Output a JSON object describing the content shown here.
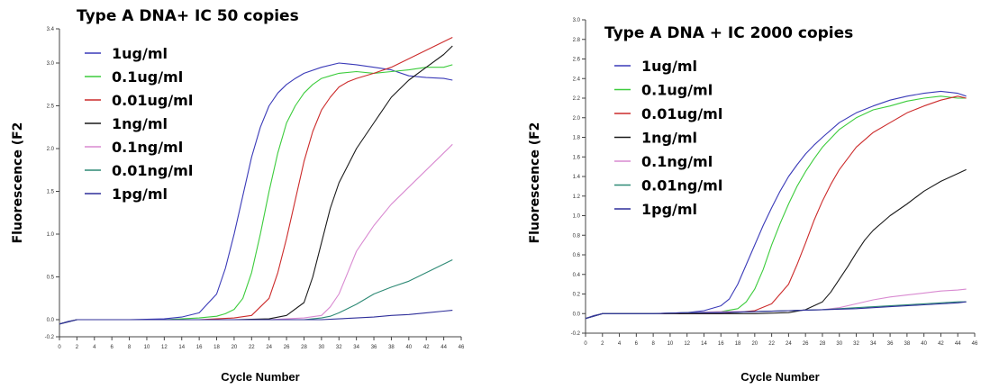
{
  "chart_data": [
    {
      "type": "line",
      "title": "Type A DNA+ IC 50 copies",
      "xlabel": "Cycle Number",
      "ylabel": "Fluorescence (F2",
      "xlim": [
        0,
        46
      ],
      "ylim": [
        -0.2,
        3.4
      ],
      "x_ticks": [
        "0",
        "2",
        "4",
        "6",
        "8",
        "10",
        "12",
        "14",
        "16",
        "18",
        "20",
        "22",
        "24",
        "26",
        "28",
        "30",
        "32",
        "34",
        "36",
        "38",
        "40",
        "42",
        "44",
        "46"
      ],
      "y_ticks": [
        "-0.2",
        "0.0",
        "0.5",
        "1.0",
        "1.5",
        "2.0",
        "2.5",
        "3.0",
        "3.4"
      ],
      "legend_position": "top-left",
      "series": [
        {
          "name": "1ug/ml",
          "color": "#3a3ab8",
          "x": [
            0,
            1,
            2,
            4,
            8,
            12,
            14,
            16,
            18,
            19,
            20,
            21,
            22,
            23,
            24,
            25,
            26,
            27,
            28,
            30,
            32,
            34,
            36,
            38,
            40,
            42,
            44,
            45
          ],
          "y": [
            -0.05,
            -0.02,
            0,
            0,
            0,
            0.01,
            0.03,
            0.08,
            0.3,
            0.6,
            1,
            1.45,
            1.9,
            2.25,
            2.5,
            2.65,
            2.75,
            2.82,
            2.88,
            2.95,
            3,
            2.98,
            2.95,
            2.92,
            2.85,
            2.83,
            2.82,
            2.8
          ]
        },
        {
          "name": "0.1ug/ml",
          "color": "#3ccc3c",
          "x": [
            0,
            2,
            4,
            8,
            12,
            16,
            18,
            19,
            20,
            21,
            22,
            23,
            24,
            25,
            26,
            27,
            28,
            29,
            30,
            31,
            32,
            34,
            36,
            38,
            40,
            42,
            44,
            45
          ],
          "y": [
            -0.05,
            0,
            0,
            0,
            0,
            0.02,
            0.04,
            0.07,
            0.12,
            0.25,
            0.55,
            1,
            1.5,
            1.95,
            2.3,
            2.5,
            2.65,
            2.75,
            2.82,
            2.85,
            2.88,
            2.9,
            2.88,
            2.9,
            2.92,
            2.95,
            2.95,
            2.98
          ]
        },
        {
          "name": "0.01ug/ml",
          "color": "#cc2b2b",
          "x": [
            0,
            2,
            4,
            8,
            12,
            16,
            20,
            22,
            24,
            25,
            26,
            27,
            28,
            29,
            30,
            31,
            32,
            33,
            34,
            36,
            38,
            40,
            42,
            44,
            45
          ],
          "y": [
            -0.05,
            0,
            0,
            0,
            0,
            0,
            0.02,
            0.05,
            0.25,
            0.55,
            0.95,
            1.4,
            1.85,
            2.2,
            2.45,
            2.6,
            2.72,
            2.78,
            2.82,
            2.88,
            2.95,
            3.05,
            3.15,
            3.25,
            3.3
          ]
        },
        {
          "name": "1ng/ml",
          "color": "#1a1a1a",
          "x": [
            0,
            2,
            4,
            8,
            12,
            16,
            20,
            24,
            26,
            28,
            29,
            30,
            31,
            32,
            34,
            36,
            38,
            40,
            42,
            44,
            45
          ],
          "y": [
            -0.05,
            0,
            0,
            0,
            0,
            0,
            0,
            0.01,
            0.05,
            0.2,
            0.5,
            0.9,
            1.3,
            1.6,
            2,
            2.3,
            2.6,
            2.8,
            2.95,
            3.1,
            3.2
          ]
        },
        {
          "name": "0.1ng/ml",
          "color": "#d98ad1",
          "x": [
            0,
            2,
            4,
            8,
            12,
            16,
            20,
            24,
            28,
            30,
            31,
            32,
            33,
            34,
            35,
            36,
            38,
            40,
            42,
            44,
            45
          ],
          "y": [
            -0.05,
            0,
            0,
            0,
            0,
            0,
            0,
            0,
            0.02,
            0.05,
            0.15,
            0.3,
            0.55,
            0.8,
            0.95,
            1.1,
            1.35,
            1.55,
            1.75,
            1.95,
            2.05
          ]
        },
        {
          "name": "0.01ng/ml",
          "color": "#2e8a75",
          "x": [
            0,
            2,
            4,
            8,
            12,
            16,
            20,
            24,
            28,
            30,
            31,
            32,
            34,
            36,
            38,
            40,
            42,
            44,
            45
          ],
          "y": [
            -0.05,
            0,
            0,
            0,
            0,
            0,
            0,
            0,
            0,
            0.02,
            0.04,
            0.08,
            0.18,
            0.3,
            0.38,
            0.45,
            0.55,
            0.65,
            0.7
          ]
        },
        {
          "name": "1pg/ml",
          "color": "#2f2f9a",
          "x": [
            0,
            2,
            4,
            8,
            12,
            16,
            20,
            24,
            28,
            30,
            32,
            34,
            36,
            38,
            40,
            42,
            44,
            45
          ],
          "y": [
            -0.05,
            0,
            0,
            0,
            0,
            0,
            0,
            0,
            0,
            0,
            0.01,
            0.02,
            0.03,
            0.05,
            0.06,
            0.08,
            0.1,
            0.11
          ]
        }
      ]
    },
    {
      "type": "line",
      "title": "Type A DNA + IC 2000 copies",
      "xlabel": "Cycle Number",
      "ylabel": "Fluorescence (F2",
      "xlim": [
        0,
        46
      ],
      "ylim": [
        -0.2,
        3.0
      ],
      "x_ticks": [
        "0",
        "2",
        "4",
        "6",
        "8",
        "10",
        "12",
        "14",
        "16",
        "18",
        "20",
        "22",
        "24",
        "26",
        "28",
        "30",
        "32",
        "34",
        "36",
        "38",
        "40",
        "42",
        "44",
        "46"
      ],
      "y_ticks": [
        "-0.2",
        "0.0",
        "0.2",
        "0.4",
        "0.6",
        "0.8",
        "1.0",
        "1.2",
        "1.4",
        "1.6",
        "1.8",
        "2.0",
        "2.2",
        "2.4",
        "2.6",
        "2.8",
        "3.0"
      ],
      "legend_position": "top-left",
      "series": [
        {
          "name": "1ug/ml",
          "color": "#3a3ab8",
          "x": [
            0,
            1,
            2,
            4,
            8,
            12,
            14,
            16,
            17,
            18,
            19,
            20,
            21,
            22,
            23,
            24,
            25,
            26,
            27,
            28,
            30,
            32,
            34,
            36,
            38,
            40,
            42,
            44,
            45
          ],
          "y": [
            -0.05,
            -0.02,
            0,
            0,
            0,
            0.01,
            0.03,
            0.08,
            0.15,
            0.3,
            0.5,
            0.7,
            0.9,
            1.08,
            1.25,
            1.4,
            1.52,
            1.63,
            1.72,
            1.8,
            1.95,
            2.05,
            2.12,
            2.18,
            2.22,
            2.25,
            2.27,
            2.25,
            2.22
          ]
        },
        {
          "name": "0.1ug/ml",
          "color": "#3ccc3c",
          "x": [
            0,
            2,
            4,
            8,
            12,
            16,
            18,
            19,
            20,
            21,
            22,
            23,
            24,
            25,
            26,
            27,
            28,
            30,
            32,
            34,
            36,
            38,
            40,
            42,
            44,
            45
          ],
          "y": [
            -0.05,
            0,
            0,
            0,
            0,
            0.02,
            0.05,
            0.12,
            0.25,
            0.45,
            0.7,
            0.92,
            1.12,
            1.3,
            1.45,
            1.58,
            1.7,
            1.88,
            2,
            2.08,
            2.12,
            2.17,
            2.2,
            2.22,
            2.2,
            2.2
          ]
        },
        {
          "name": "0.01ug/ml",
          "color": "#cc2b2b",
          "x": [
            0,
            2,
            4,
            8,
            12,
            16,
            20,
            22,
            24,
            25,
            26,
            27,
            28,
            29,
            30,
            32,
            34,
            36,
            38,
            40,
            42,
            44,
            45
          ],
          "y": [
            -0.05,
            0,
            0,
            0,
            0,
            0,
            0.03,
            0.1,
            0.3,
            0.5,
            0.72,
            0.95,
            1.15,
            1.32,
            1.47,
            1.7,
            1.85,
            1.95,
            2.05,
            2.12,
            2.18,
            2.22,
            2.2
          ]
        },
        {
          "name": "1ng/ml",
          "color": "#1a1a1a",
          "x": [
            0,
            2,
            4,
            8,
            12,
            16,
            20,
            24,
            26,
            28,
            29,
            30,
            31,
            32,
            33,
            34,
            36,
            38,
            40,
            42,
            44,
            45
          ],
          "y": [
            -0.05,
            0,
            0,
            0,
            0,
            0,
            0,
            0.01,
            0.04,
            0.12,
            0.22,
            0.35,
            0.48,
            0.62,
            0.75,
            0.85,
            1,
            1.12,
            1.25,
            1.35,
            1.43,
            1.47
          ]
        },
        {
          "name": "0.1ng/ml",
          "color": "#d98ad1",
          "x": [
            0,
            2,
            4,
            8,
            12,
            16,
            20,
            24,
            28,
            30,
            32,
            34,
            36,
            38,
            40,
            42,
            44,
            45
          ],
          "y": [
            -0.05,
            0,
            0,
            0,
            0.01,
            0.02,
            0.02,
            0.03,
            0.04,
            0.06,
            0.1,
            0.14,
            0.17,
            0.19,
            0.21,
            0.23,
            0.24,
            0.25
          ]
        },
        {
          "name": "0.01ng/ml",
          "color": "#2e8a75",
          "x": [
            0,
            2,
            4,
            8,
            12,
            16,
            20,
            24,
            28,
            32,
            36,
            40,
            44,
            45
          ],
          "y": [
            -0.05,
            0,
            0,
            0,
            0.01,
            0.01,
            0.02,
            0.03,
            0.04,
            0.06,
            0.08,
            0.1,
            0.12,
            0.12
          ]
        },
        {
          "name": "1pg/ml",
          "color": "#2f2f9a",
          "x": [
            0,
            2,
            4,
            8,
            12,
            16,
            20,
            24,
            28,
            32,
            36,
            40,
            44,
            45
          ],
          "y": [
            -0.05,
            0,
            0,
            0,
            0.01,
            0.01,
            0.02,
            0.03,
            0.04,
            0.05,
            0.07,
            0.09,
            0.11,
            0.12
          ]
        }
      ]
    }
  ]
}
